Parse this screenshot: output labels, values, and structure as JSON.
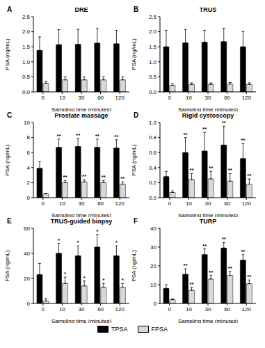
{
  "chart_data": [
    {
      "type": "bar",
      "panel": "A",
      "title": "DRE",
      "x_label": "Sampling time (minutes)",
      "y_label": "PSA (ng/mL)",
      "categories": [
        "0",
        "10",
        "30",
        "60",
        "120"
      ],
      "ylim": [
        0,
        2.5
      ],
      "yticks": [
        {
          "value": 0,
          "label": "0.0"
        },
        {
          "value": 0.5,
          "label": "0.5"
        },
        {
          "value": 1,
          "label": "1.0"
        },
        {
          "value": 1.5,
          "label": "1.5"
        },
        {
          "value": 2,
          "label": "2.0"
        },
        {
          "value": 2.5,
          "label": "2.5"
        }
      ],
      "series": [
        {
          "name": "TPSA",
          "color": "#000000",
          "values": [
            1.38,
            1.57,
            1.58,
            1.62,
            1.6
          ],
          "errors": [
            0.45,
            0.5,
            0.5,
            0.5,
            0.45
          ],
          "annotations": [
            null,
            null,
            null,
            null,
            null
          ]
        },
        {
          "name": "FPSA",
          "color": "#d9d9d9",
          "values": [
            0.28,
            0.4,
            0.4,
            0.4,
            0.4
          ],
          "errors": [
            0.07,
            0.1,
            0.1,
            0.1,
            0.1
          ],
          "annotations": [
            null,
            null,
            null,
            null,
            null
          ]
        }
      ]
    },
    {
      "type": "bar",
      "panel": "B",
      "title": "TRUS",
      "x_label": "Sampling time (minutes)",
      "y_label": "PSA (ng/mL)",
      "categories": [
        "0",
        "10",
        "30",
        "60",
        "120"
      ],
      "ylim": [
        0,
        2.5
      ],
      "yticks": [
        {
          "value": 0,
          "label": "0.0"
        },
        {
          "value": 0.5,
          "label": "0.5"
        },
        {
          "value": 1,
          "label": "1.0"
        },
        {
          "value": 1.5,
          "label": "1.5"
        },
        {
          "value": 2,
          "label": "2.0"
        },
        {
          "value": 2.5,
          "label": "2.5"
        }
      ],
      "series": [
        {
          "name": "TPSA",
          "color": "#000000",
          "values": [
            1.5,
            1.63,
            1.65,
            1.67,
            1.5
          ],
          "errors": [
            0.55,
            0.45,
            0.4,
            0.45,
            0.5
          ],
          "annotations": [
            null,
            null,
            null,
            null,
            null
          ]
        },
        {
          "name": "FPSA",
          "color": "#d9d9d9",
          "values": [
            0.22,
            0.25,
            0.25,
            0.26,
            0.25
          ],
          "errors": [
            0.05,
            0.05,
            0.05,
            0.05,
            0.05
          ],
          "annotations": [
            null,
            null,
            null,
            null,
            null
          ]
        }
      ]
    },
    {
      "type": "bar",
      "panel": "C",
      "title": "Prostate massage",
      "x_label": "Sampling time (minutes)",
      "y_label": "PSA (ng/mL)",
      "categories": [
        "0",
        "10",
        "30",
        "60",
        "120"
      ],
      "ylim": [
        0,
        10
      ],
      "yticks": [
        0,
        2,
        4,
        6,
        8,
        10
      ],
      "series": [
        {
          "name": "TPSA",
          "color": "#000000",
          "values": [
            3.9,
            6.7,
            6.8,
            6.7,
            6.6
          ],
          "errors": [
            0.9,
            1.1,
            1.1,
            1.1,
            1.1
          ],
          "annotations": [
            null,
            "**",
            "**",
            "**",
            "**"
          ]
        },
        {
          "name": "FPSA",
          "color": "#d9d9d9",
          "values": [
            0.5,
            2.0,
            2.1,
            2.0,
            1.8
          ],
          "errors": [
            0.1,
            0.3,
            0.3,
            0.3,
            0.3
          ],
          "annotations": [
            null,
            "**",
            "**",
            "**",
            "**"
          ]
        }
      ]
    },
    {
      "type": "bar",
      "panel": "D",
      "title": "Rigid cystoscopy",
      "x_label": "Sampling time (minutes)",
      "y_label": "PSA (ng/mL)",
      "categories": [
        "0",
        "10",
        "30",
        "60",
        "120"
      ],
      "ylim": [
        0,
        1
      ],
      "yticks": [
        {
          "value": 0,
          "label": "0.0"
        },
        0.2,
        0.4,
        0.6,
        0.8,
        {
          "value": 1,
          "label": "1.0"
        }
      ],
      "series": [
        {
          "name": "TPSA",
          "color": "#000000",
          "values": [
            0.28,
            0.6,
            0.62,
            0.7,
            0.52
          ],
          "errors": [
            0.07,
            0.2,
            0.25,
            0.25,
            0.2
          ],
          "annotations": [
            null,
            "**",
            "**",
            "**",
            "**"
          ]
        },
        {
          "name": "FPSA",
          "color": "#d9d9d9",
          "values": [
            0.07,
            0.24,
            0.25,
            0.22,
            0.18
          ],
          "errors": [
            0.02,
            0.08,
            0.1,
            0.1,
            0.07
          ],
          "annotations": [
            null,
            "**",
            "**",
            "**",
            "**"
          ]
        }
      ]
    },
    {
      "type": "bar",
      "panel": "E",
      "title": "TRUS-guided biopsy",
      "x_label": "Sampling time (minutes)",
      "y_label": "PSA (ng/mL)",
      "categories": [
        "0",
        "10",
        "30",
        "60",
        "120"
      ],
      "ylim": [
        0,
        60
      ],
      "yticks": [
        0,
        20,
        40,
        60
      ],
      "series": [
        {
          "name": "TPSA",
          "color": "#000000",
          "values": [
            23,
            40,
            38,
            45,
            38
          ],
          "errors": [
            9,
            8,
            8,
            10,
            8
          ],
          "annotations": [
            null,
            "*",
            "*",
            "*",
            "*"
          ]
        },
        {
          "name": "FPSA",
          "color": "#d9d9d9",
          "values": [
            2,
            16,
            14,
            13,
            13
          ],
          "errors": [
            2,
            5,
            4,
            3,
            3
          ],
          "annotations": [
            null,
            "*",
            "*",
            "*",
            "*"
          ]
        }
      ]
    },
    {
      "type": "bar",
      "panel": "F",
      "title": "TURP",
      "x_label": "Sampling time (minutes)",
      "y_label": "PSA (ng/mL)",
      "categories": [
        "0",
        "10",
        "30",
        "60",
        "120"
      ],
      "ylim": [
        0,
        40
      ],
      "yticks": [
        0,
        10,
        20,
        30,
        40
      ],
      "series": [
        {
          "name": "TPSA",
          "color": "#000000",
          "values": [
            8,
            15.5,
            26,
            29.5,
            23
          ],
          "errors": [
            2,
            3,
            3,
            3,
            3
          ],
          "annotations": [
            null,
            "**",
            "**",
            "**",
            "**"
          ]
        },
        {
          "name": "FPSA",
          "color": "#d9d9d9",
          "values": [
            2,
            7,
            13,
            15,
            10.5
          ],
          "errors": [
            0.5,
            1.5,
            2,
            2,
            2
          ],
          "annotations": [
            null,
            "**",
            "**",
            "**",
            "**"
          ]
        }
      ]
    }
  ]
}
